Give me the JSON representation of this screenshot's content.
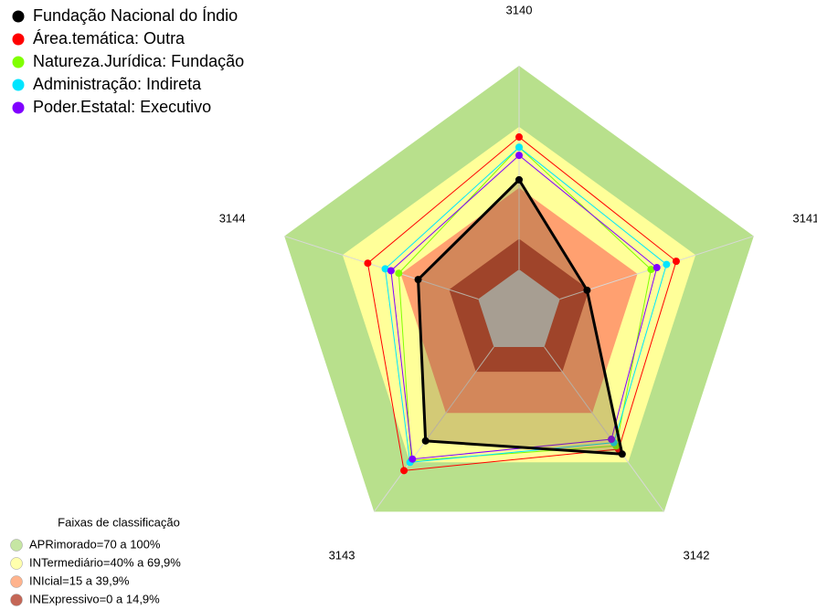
{
  "chart_data": {
    "type": "radar",
    "categories": [
      "3140",
      "3141",
      "3142",
      "3143",
      "3144"
    ],
    "rlim": [
      0,
      100
    ],
    "series": [
      {
        "name": "Fundação Nacional do Índio",
        "color": "#000000",
        "values": [
          44,
          14,
          65,
          57,
          31
        ]
      },
      {
        "name": "Área.temática: Outra",
        "color": "#ff0000",
        "values": [
          65,
          60,
          62,
          75,
          57
        ]
      },
      {
        "name": "Natureza.Jurídica: Fundação",
        "color": "#80ff00",
        "values": [
          60,
          47,
          60,
          69,
          41
        ]
      },
      {
        "name": "Administração: Indireta",
        "color": "#00e5ff",
        "values": [
          60,
          55,
          58,
          70,
          48
        ]
      },
      {
        "name": "Poder.Estatal: Executivo",
        "color": "#8000ff",
        "values": [
          56,
          50,
          56,
          68,
          45
        ]
      }
    ],
    "bands_title": "Faixas de classificação",
    "bands": [
      {
        "label": "APRimorado=70 a 100%",
        "color": "#b8e08c",
        "range": [
          70,
          100
        ]
      },
      {
        "label": "INTermediário=40% a 69,9%",
        "color": "#ffff99",
        "range": [
          40,
          70
        ]
      },
      {
        "label": "INIcial=15 a 39,9%",
        "color": "#ffa070",
        "range": [
          15,
          40
        ]
      },
      {
        "label": "INExpressivo=0 a 14,9%",
        "color": "#b5402c",
        "range": [
          0,
          15
        ]
      }
    ]
  }
}
